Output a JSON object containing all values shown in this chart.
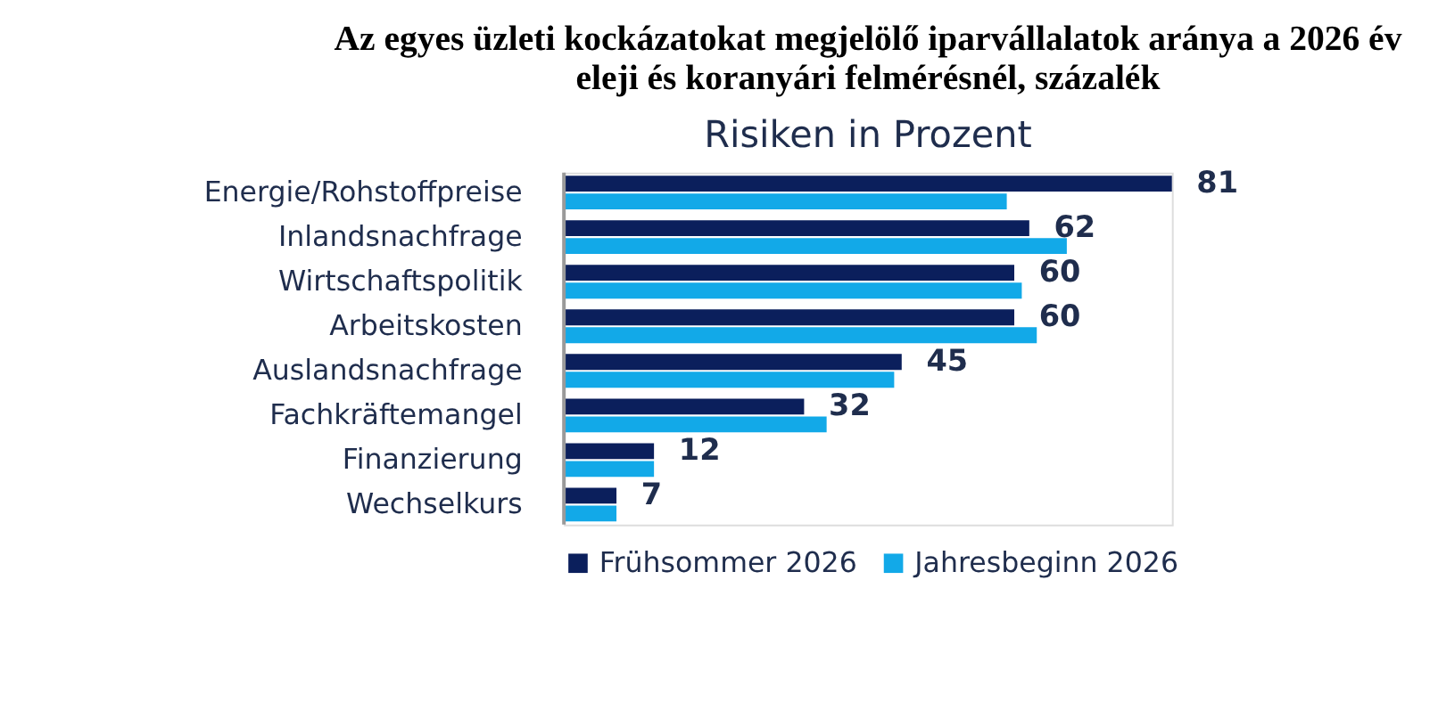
{
  "chart_data": {
    "type": "bar",
    "orientation": "horizontal",
    "title": "Az egyes üzleti kockázatokat megjelölő iparvállalatok aránya a 2026 év eleji és koranyári felmérésnél, százalék",
    "subtitle": "Risiken in Prozent",
    "categories": [
      "Energie/Rohstoffpreise",
      "Inlandsnachfrage",
      "Wirtschaftspolitik",
      "Arbeitskosten",
      "Auslandsnachfrage",
      "Fachkräftemangel",
      "Finanzierung",
      "Wechselkurs"
    ],
    "series": [
      {
        "name": "Frühsommer 2026",
        "color": "#0b1f5c",
        "values": [
          81,
          62,
          60,
          60,
          45,
          32,
          12,
          7
        ],
        "value_labels": [
          "81",
          "62",
          "60",
          "60",
          "45",
          "32",
          "12",
          "7"
        ]
      },
      {
        "name": "Jahresbeginn 2026",
        "color": "#12a9e8",
        "values": [
          59,
          67,
          61,
          63,
          44,
          35,
          12,
          7
        ]
      }
    ],
    "legend": "bottom",
    "grid": false
  }
}
